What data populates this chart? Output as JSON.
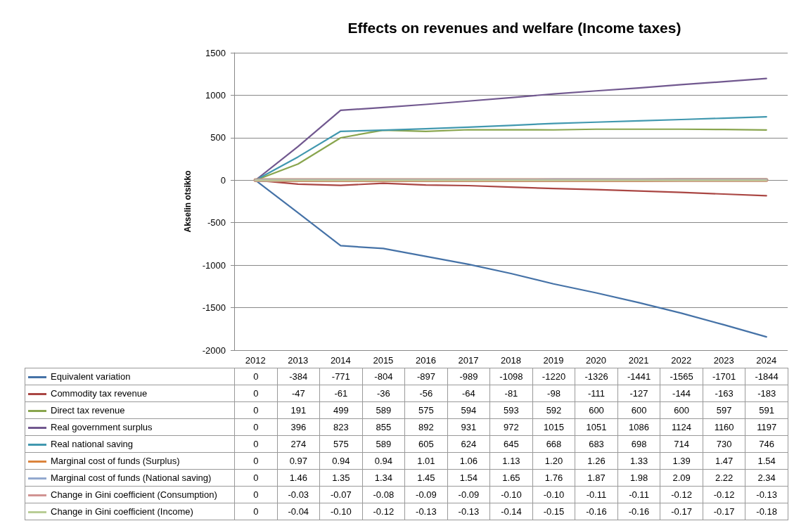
{
  "chart_data": {
    "type": "line",
    "title": "Effects on revenues and welfare (Income taxes)",
    "ylabel": "Akselin otsikko",
    "categories": [
      "2012",
      "2013",
      "2014",
      "2015",
      "2016",
      "2017",
      "2018",
      "2019",
      "2020",
      "2021",
      "2022",
      "2023",
      "2024"
    ],
    "ylim": [
      -2000,
      1500
    ],
    "yticks": [
      -2000,
      -1500,
      -1000,
      -500,
      0,
      500,
      1000,
      1500
    ],
    "grid": "y",
    "legend": "bottom",
    "data_labels": true,
    "marker": "none",
    "series": [
      {
        "name": "Equivalent variation",
        "color": "#4572a7",
        "values": [
          0,
          -384,
          -771,
          -804,
          -897,
          -989,
          -1098,
          -1220,
          -1326,
          -1441,
          -1565,
          -1701,
          -1844
        ]
      },
      {
        "name": "Commodity tax revenue",
        "color": "#aa4643",
        "values": [
          0,
          -47,
          -61,
          -36,
          -56,
          -64,
          -81,
          -98,
          -111,
          -127,
          -144,
          -163,
          -183
        ]
      },
      {
        "name": "Direct tax revenue",
        "color": "#89a54e",
        "values": [
          0,
          191,
          499,
          589,
          575,
          594,
          593,
          592,
          600,
          600,
          600,
          597,
          591
        ]
      },
      {
        "name": "Real government surplus",
        "color": "#71588f",
        "values": [
          0,
          396,
          823,
          855,
          892,
          931,
          972,
          1015,
          1051,
          1086,
          1124,
          1160,
          1197
        ]
      },
      {
        "name": "Real national saving",
        "color": "#4198af",
        "values": [
          0,
          274,
          575,
          589,
          605,
          624,
          645,
          668,
          683,
          698,
          714,
          730,
          746
        ]
      },
      {
        "name": "Marginal cost of funds (Surplus)",
        "color": "#db843d",
        "values": [
          0,
          0.97,
          0.94,
          0.94,
          1.01,
          1.06,
          1.13,
          1.2,
          1.26,
          1.33,
          1.39,
          1.47,
          1.54
        ],
        "value_labels": [
          "0",
          "0.97",
          "0.94",
          "0.94",
          "1.01",
          "1.06",
          "1.13",
          "1.20",
          "1.26",
          "1.33",
          "1.39",
          "1.47",
          "1.54"
        ]
      },
      {
        "name": "Marginal cost of funds (National saving)",
        "color": "#93a9cf",
        "values": [
          0,
          1.46,
          1.35,
          1.34,
          1.45,
          1.54,
          1.65,
          1.76,
          1.87,
          1.98,
          2.09,
          2.22,
          2.34
        ],
        "value_labels": [
          "0",
          "1.46",
          "1.35",
          "1.34",
          "1.45",
          "1.54",
          "1.65",
          "1.76",
          "1.87",
          "1.98",
          "2.09",
          "2.22",
          "2.34"
        ]
      },
      {
        "name": "Change in Gini coefficient (Consumption)",
        "color": "#d19392",
        "values": [
          0,
          -0.03,
          -0.07,
          -0.08,
          -0.09,
          -0.09,
          -0.1,
          -0.1,
          -0.11,
          -0.11,
          -0.12,
          -0.12,
          -0.13
        ],
        "value_labels": [
          "0",
          "-0.03",
          "-0.07",
          "-0.08",
          "-0.09",
          "-0.09",
          "-0.10",
          "-0.10",
          "-0.11",
          "-0.11",
          "-0.12",
          "-0.12",
          "-0.13"
        ]
      },
      {
        "name": "Change in Gini coefficient (Income)",
        "color": "#b9cd96",
        "values": [
          0,
          -0.04,
          -0.1,
          -0.12,
          -0.13,
          -0.13,
          -0.14,
          -0.15,
          -0.16,
          -0.16,
          -0.17,
          -0.17,
          -0.18
        ],
        "value_labels": [
          "0",
          "-0.04",
          "-0.10",
          "-0.12",
          "-0.13",
          "-0.13",
          "-0.14",
          "-0.15",
          "-0.16",
          "-0.16",
          "-0.17",
          "-0.17",
          "-0.18"
        ]
      }
    ]
  }
}
